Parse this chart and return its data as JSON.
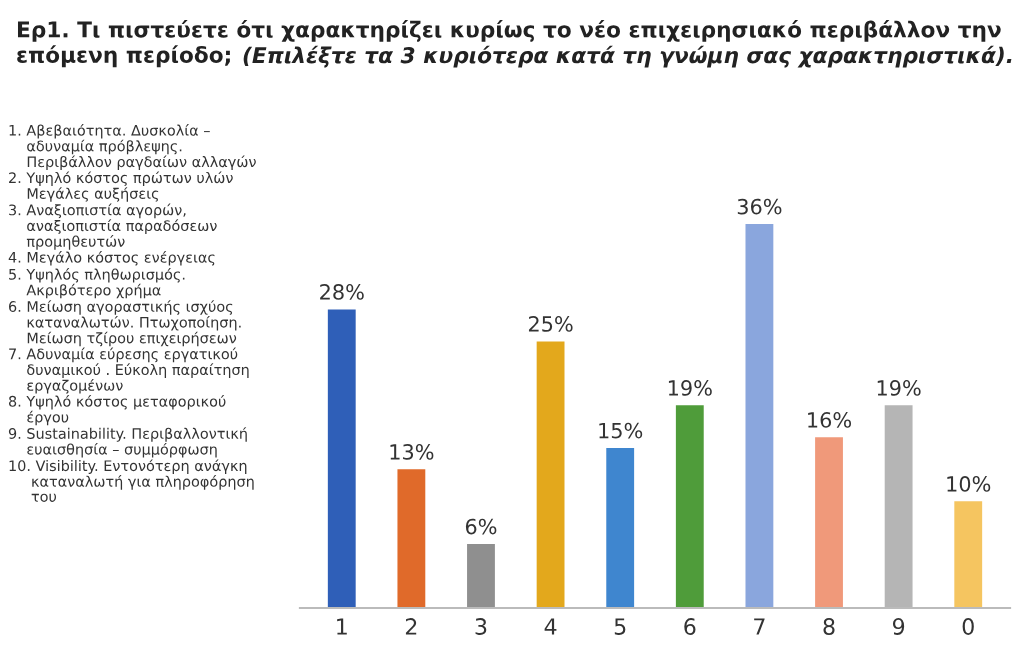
{
  "chart_data": {
    "type": "bar",
    "title": "Ερ1. Τι πιστεύετε ότι χαρακτηρίζει κυρίως το νέο επιχειρησιακό περιβάλλον την\nεπόμενη περίοδο;",
    "subtitle": "(Επιλέξτε τα 3 κυριότερα κατά τη γνώμη σας χαρακτηριστικά).",
    "categories": [
      "1",
      "2",
      "3",
      "4",
      "5",
      "6",
      "7",
      "8",
      "9",
      "0"
    ],
    "values": [
      28,
      13,
      6,
      25,
      15,
      19,
      36,
      16,
      19,
      10
    ],
    "value_labels": [
      "28%",
      "13%",
      "6%",
      "25%",
      "15%",
      "19%",
      "36%",
      "16%",
      "19%",
      "10%"
    ],
    "colors": [
      "#2f5fb8",
      "#e06a2a",
      "#8f8f8f",
      "#e3a81c",
      "#3f86cf",
      "#4f9c3a",
      "#8aa6dd",
      "#f0997a",
      "#b5b5b5",
      "#f5c560"
    ],
    "tick_labels": "x",
    "annotations": [
      "1. Αβεβαιότητα. Δυσκολία –\n    αδυναμία πρόβλεψης.\n    Περιβάλλον ραγδαίων αλλαγών",
      "2. Υψηλό κόστος πρώτων υλών\n    Μεγάλες αυξήσεις",
      "3. Αναξιοπιστία αγορών,\n    αναξιοπιστία παραδόσεων\n    προμηθευτών",
      "4. Μεγάλο κόστος ενέργειας",
      "5. Υψηλός πληθωρισμός.\n    Ακριβότερο χρήμα",
      "6. Μείωση αγοραστικής ισχύος\n    καταναλωτών. Πτωχοποίηση.\n    Μείωση τζίρου επιχειρήσεων",
      "7. Αδυναμία εύρεσης εργατικού\n    δυναμικού . Εύκολη παραίτηση\n    εργαζομένων",
      "8. Υψηλό κόστος μεταφορικού\n    έργου",
      "9. Sustainability. Περιβαλλοντική\n    ευαισθησία – συμμόρφωση",
      "10. Visibility. Εντονότερη ανάγκη\n     καταναλωτή για πληροφόρηση\n     του"
    ]
  }
}
